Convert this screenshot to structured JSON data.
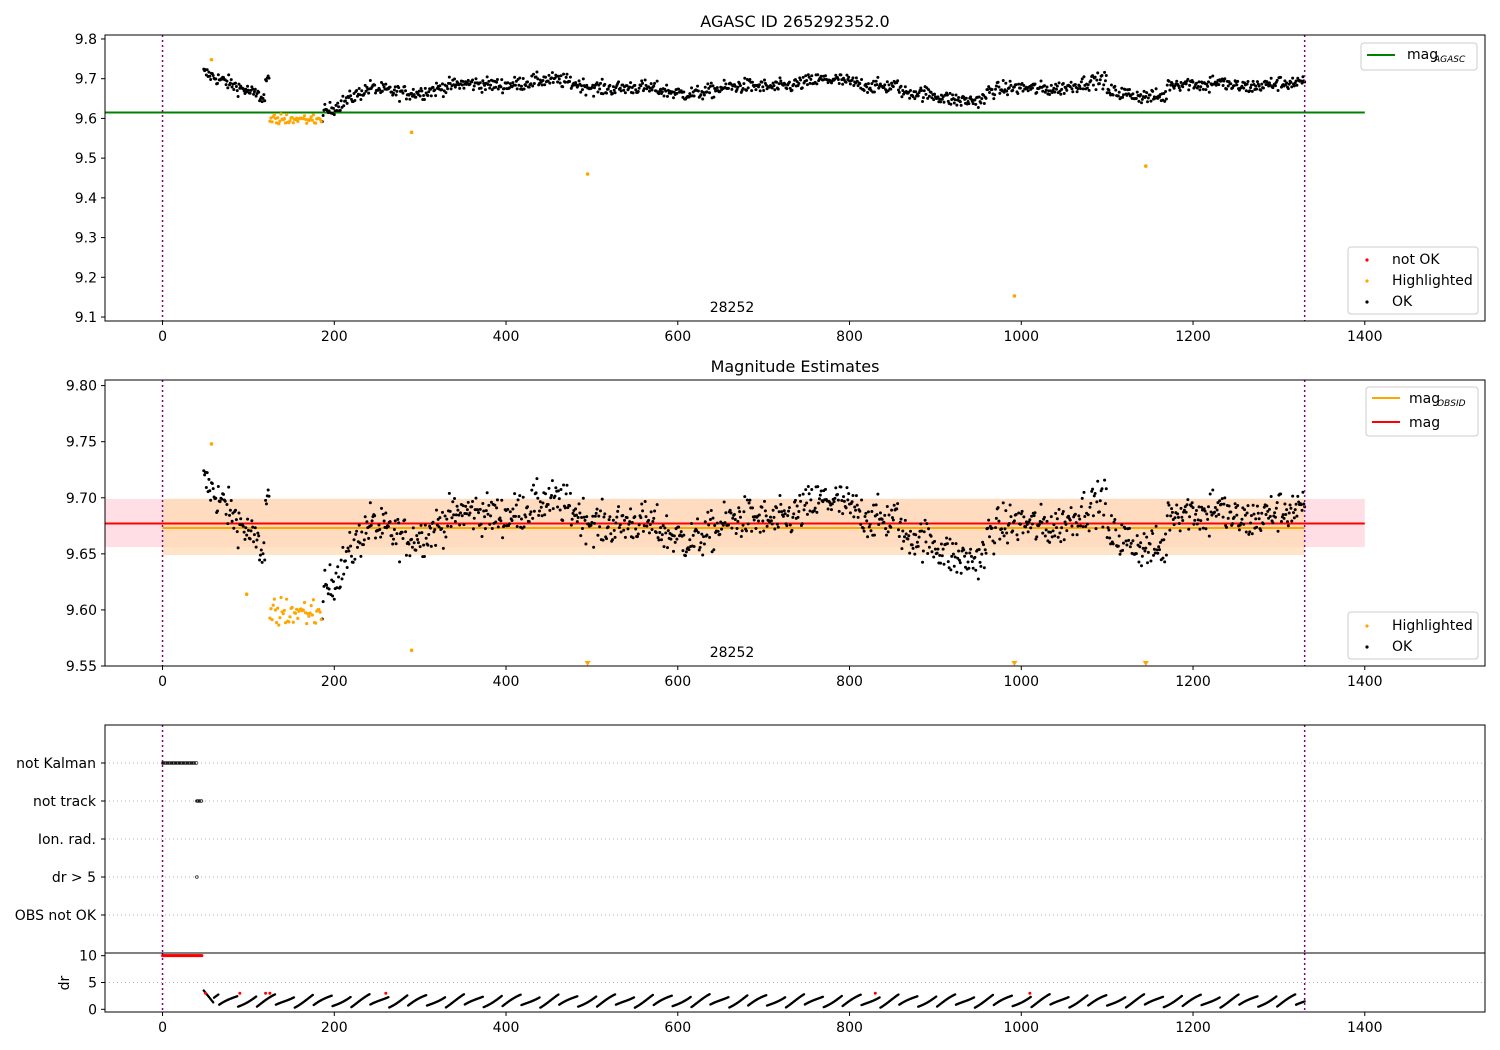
{
  "chart_data": [
    {
      "type": "scatter",
      "title": "AGASC ID 265292352.0",
      "xlim": [
        -67,
        1540
      ],
      "ylim": [
        9.09,
        9.81
      ],
      "xticks": [
        "0",
        "200",
        "400",
        "600",
        "800",
        "1000",
        "1200",
        "1400"
      ],
      "yticks": [
        "9.1",
        "9.2",
        "9.3",
        "9.4",
        "9.5",
        "9.6",
        "9.7",
        "9.8"
      ],
      "annotation": "28252",
      "vlines": [
        0,
        1330
      ],
      "hlines": [
        {
          "name": "mag_AGASC",
          "label": "mag",
          "sub": "AGASC",
          "y": 9.615,
          "color": "#008000",
          "xrange": [
            -67,
            1400
          ]
        }
      ],
      "legend_top": {
        "placement": "top-right",
        "entries": [
          {
            "label": "mag",
            "sub": "AGASC",
            "color": "#008000"
          }
        ]
      },
      "legend_bottom": {
        "placement": "bottom-right",
        "entries": [
          {
            "label": "not OK",
            "color": "#ff0000"
          },
          {
            "label": "Highlighted",
            "color": "#ffa500"
          },
          {
            "label": "OK",
            "color": "#000000"
          }
        ]
      },
      "series": [
        {
          "name": "OK",
          "color": "#000000",
          "x_range": [
            48,
            1330
          ]
        },
        {
          "name": "Highlighted",
          "color": "#ffa500",
          "x_range": [
            125,
            185
          ],
          "mean": 9.598
        },
        {
          "name": "Highlighted outliers",
          "color": "#ffa500",
          "x": [
            57,
            290,
            495,
            992,
            1145
          ],
          "y": [
            9.748,
            9.565,
            9.46,
            9.153,
            9.48
          ]
        }
      ]
    },
    {
      "type": "scatter",
      "title": "Magnitude Estimates",
      "xlim": [
        -67,
        1540
      ],
      "ylim": [
        9.55,
        9.805
      ],
      "xticks": [
        "0",
        "200",
        "400",
        "600",
        "800",
        "1000",
        "1200",
        "1400"
      ],
      "yticks": [
        "9.55",
        "9.60",
        "9.65",
        "9.70",
        "9.75",
        "9.80"
      ],
      "annotation": "28252",
      "vlines": [
        0,
        1330
      ],
      "bands": [
        {
          "name": "mag band",
          "color": "#ffc0cb",
          "y": [
            9.656,
            9.699
          ],
          "xrange": [
            -67,
            1400
          ]
        },
        {
          "name": "mag_OBSID band",
          "color": "#ffd8b0",
          "y": [
            9.649,
            9.699
          ],
          "xrange": [
            0,
            1330
          ]
        }
      ],
      "hlines": [
        {
          "name": "mag_OBSID",
          "y": 9.673,
          "color": "#ffa500",
          "xrange": [
            0,
            1330
          ]
        },
        {
          "name": "mag",
          "y": 9.677,
          "color": "#ff0000",
          "xrange": [
            -67,
            1400
          ]
        }
      ],
      "legend_top": {
        "placement": "top-right",
        "entries": [
          {
            "label": "mag",
            "sub": "OBSID",
            "color": "#ffa500"
          },
          {
            "label": "mag",
            "sub": "",
            "color": "#ff0000"
          }
        ]
      },
      "legend_bottom": {
        "placement": "bottom-right",
        "entries": [
          {
            "label": "Highlighted",
            "color": "#ffa500"
          },
          {
            "label": "OK",
            "color": "#000000"
          }
        ]
      },
      "clipped_markers_x": [
        495,
        992,
        1145
      ]
    },
    {
      "type": "scatter",
      "title": "",
      "xlim": [
        -67,
        1540
      ],
      "categories": [
        "not Kalman",
        "not track",
        "Ion. rad.",
        "dr > 5",
        "OBS not OK"
      ],
      "flags": [
        {
          "category": "not Kalman",
          "x_range": [
            0,
            40
          ]
        },
        {
          "category": "not track",
          "x_range": [
            40,
            46
          ]
        },
        {
          "category": "dr > 5",
          "x": [
            40
          ]
        }
      ],
      "vlines": [
        0,
        1330
      ]
    },
    {
      "type": "scatter",
      "title": "",
      "ylabel": "dr",
      "xlim": [
        -67,
        1540
      ],
      "ylim": [
        -0.5,
        10.5
      ],
      "xticks": [
        "0",
        "200",
        "400",
        "600",
        "800",
        "1000",
        "1200",
        "1400"
      ],
      "yticks": [
        "0",
        "5",
        "10"
      ],
      "vlines": [
        0,
        1330
      ],
      "series": [
        {
          "name": "dr capped",
          "color": "#ff0000",
          "x_range": [
            0,
            46
          ],
          "y": 10
        },
        {
          "name": "dr",
          "color": "#000000",
          "x_range": [
            48,
            1330
          ]
        },
        {
          "name": "dr flagged",
          "color": "#ff0000",
          "x": [
            50,
            90,
            120,
            125,
            260,
            830,
            1010
          ]
        }
      ]
    }
  ]
}
